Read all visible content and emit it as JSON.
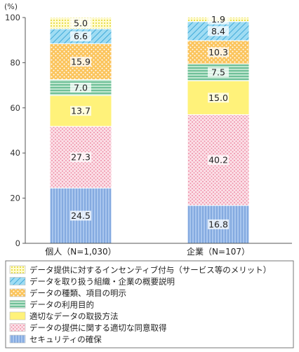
{
  "chart_data": {
    "type": "bar",
    "stacked": true,
    "unit_label": "(%)",
    "ylim": [
      0,
      100
    ],
    "yticks": [
      0,
      20,
      40,
      60,
      80,
      100
    ],
    "grid": false,
    "legend_position": "bottom",
    "categories": [
      "個人（N=1,030）",
      "企業（N=107）"
    ],
    "series": [
      {
        "name": "セキュリティの確保",
        "values": [
          24.5,
          16.8
        ],
        "color": "#8fb4e3",
        "pattern": "vlines"
      },
      {
        "name": "データの提供に関する適切な同意取得",
        "values": [
          27.3,
          40.2
        ],
        "color": "#f6c1cf",
        "pattern": "dots-pink"
      },
      {
        "name": "適切なデータの取扱方法",
        "values": [
          13.7,
          15.0
        ],
        "color": "#fff27a",
        "pattern": "solid"
      },
      {
        "name": "データの利用目的",
        "values": [
          7.0,
          7.5
        ],
        "color": "#79c7a1",
        "pattern": "hlines"
      },
      {
        "name": "データの種類、項目の明示",
        "values": [
          15.9,
          10.3
        ],
        "color": "#fbbf55",
        "pattern": "dots-orange"
      },
      {
        "name": "データを取り扱う組織・企業の概要説明",
        "values": [
          6.6,
          8.4
        ],
        "color": "#8dd3ef",
        "pattern": "diag"
      },
      {
        "name": "データ提供に対するインセンティブ付与（サービス等のメリット）",
        "values": [
          5.0,
          1.9
        ],
        "color": "#fff7a6",
        "pattern": "grid-yellow"
      }
    ]
  }
}
